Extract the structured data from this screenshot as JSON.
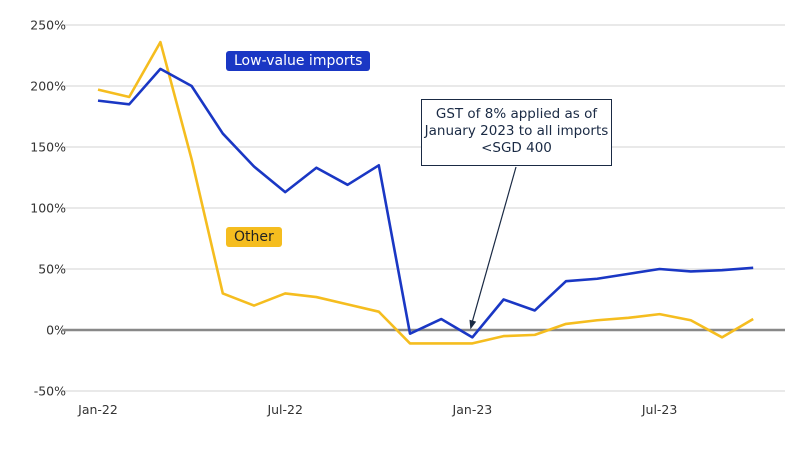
{
  "chart_data": {
    "type": "line",
    "x": [
      "Jan-22",
      "Feb-22",
      "Mar-22",
      "Apr-22",
      "May-22",
      "Jun-22",
      "Jul-22",
      "Aug-22",
      "Sep-22",
      "Oct-22",
      "Nov-22",
      "Dec-22",
      "Jan-23",
      "Feb-23",
      "Mar-23",
      "Apr-23",
      "May-23",
      "Jun-23",
      "Jul-23",
      "Aug-23",
      "Sep-23",
      "Oct-23"
    ],
    "x_tick_labels": [
      "Jan-22",
      "Jul-22",
      "Jan-23",
      "Jul-23"
    ],
    "y_tick_labels": [
      "250%",
      "200%",
      "150%",
      "100%",
      "50%",
      "0%",
      "-50%"
    ],
    "ylim": [
      -50,
      250
    ],
    "grid": "horizontal",
    "series": [
      {
        "name": "Low-value imports",
        "color": "#1a37c4",
        "values": [
          188,
          185,
          214,
          200,
          161,
          134,
          113,
          133,
          119,
          135,
          -3,
          9,
          -6,
          25,
          16,
          40,
          42,
          46,
          50,
          48,
          49,
          51
        ]
      },
      {
        "name": "Other",
        "color": "#f5bd1f",
        "values": [
          197,
          191,
          236,
          140,
          30,
          20,
          30,
          27,
          21,
          15,
          -11,
          -11,
          -11,
          -5,
          -4,
          5,
          8,
          10,
          13,
          8,
          -6,
          9
        ]
      }
    ],
    "annotation": "GST of 8% applied as of January 2023 to all imports <SGD 400",
    "annotation_target": "Jan-23"
  }
}
